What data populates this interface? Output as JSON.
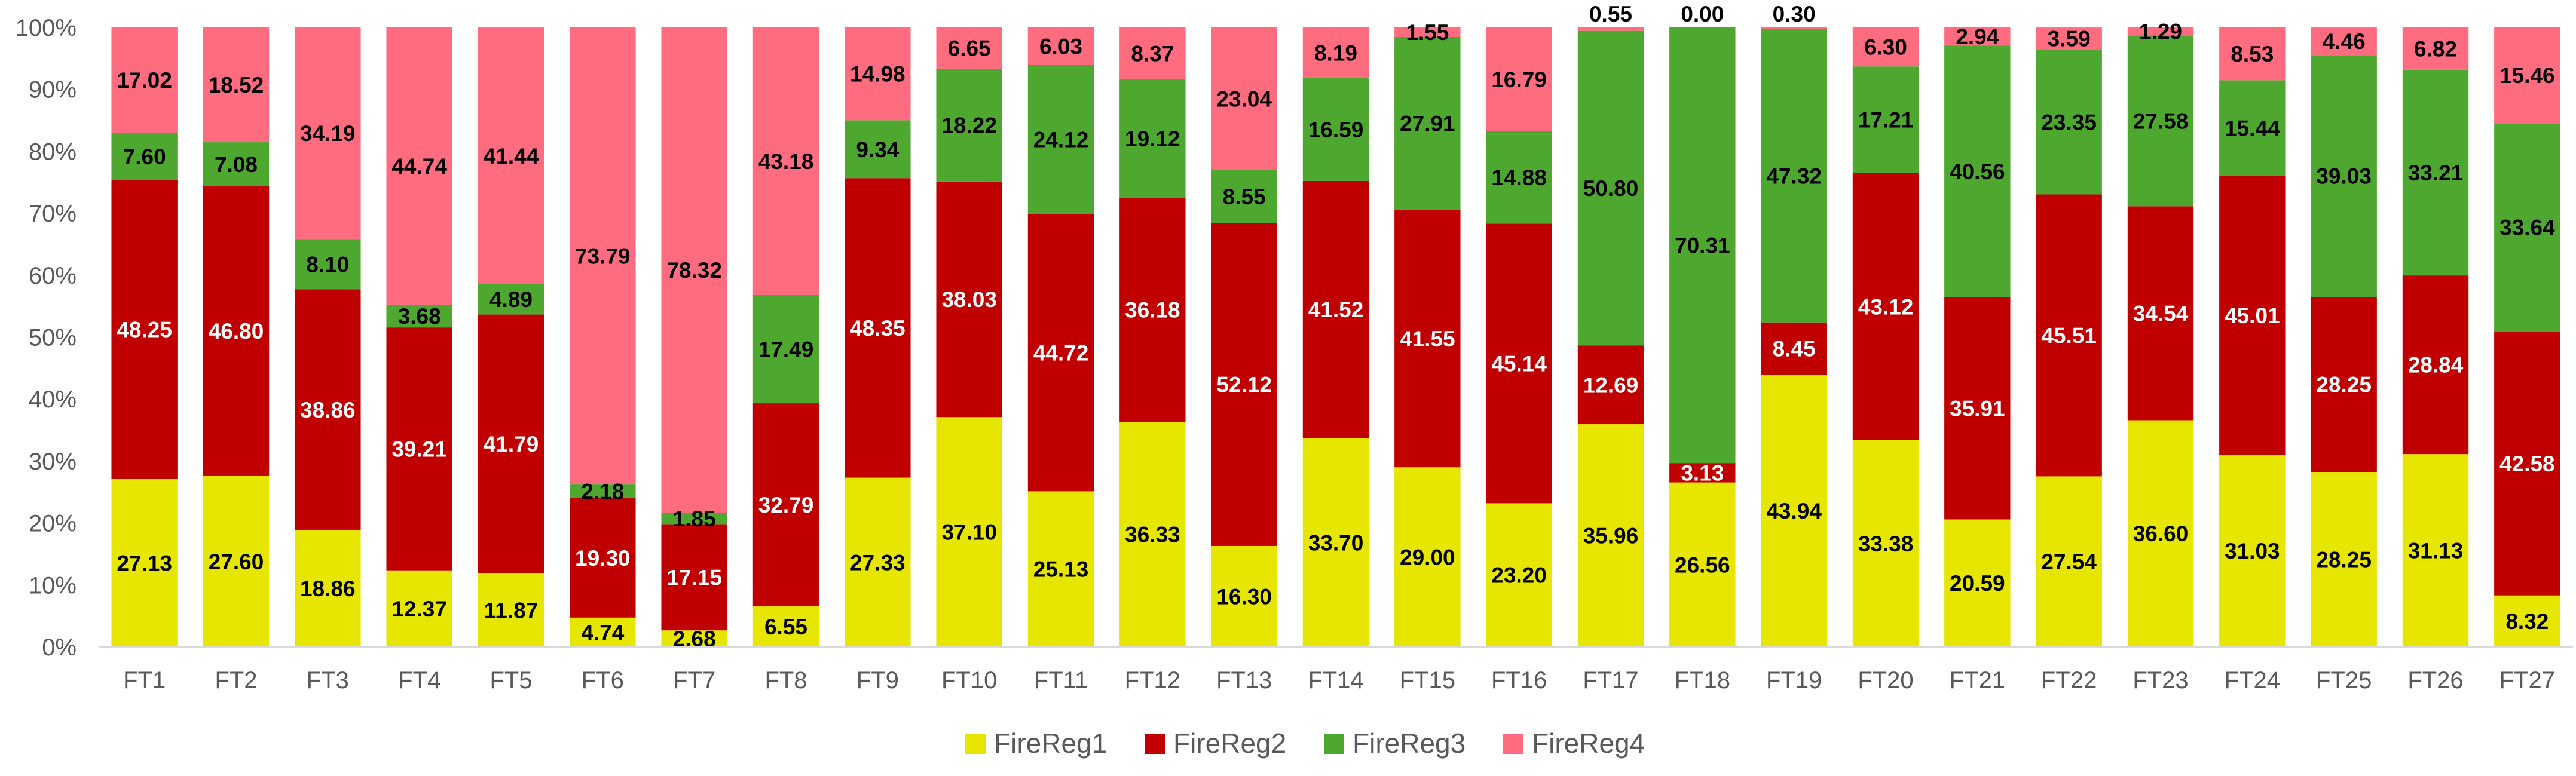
{
  "chart_data": {
    "type": "bar",
    "stacked": true,
    "title": "",
    "xlabel": "",
    "ylabel": "",
    "ylim": [
      0,
      100
    ],
    "y_tick_values": [
      0,
      10,
      20,
      30,
      40,
      50,
      60,
      70,
      80,
      90,
      100
    ],
    "y_tick_labels": [
      "0%",
      "10%",
      "20%",
      "30%",
      "40%",
      "50%",
      "60%",
      "70%",
      "80%",
      "90%",
      "100%"
    ],
    "grid": false,
    "legend_position": "bottom",
    "categories": [
      "FT1",
      "FT2",
      "FT3",
      "FT4",
      "FT5",
      "FT6",
      "FT7",
      "FT8",
      "FT9",
      "FT10",
      "FT11",
      "FT12",
      "FT13",
      "FT14",
      "FT15",
      "FT16",
      "FT17",
      "FT18",
      "FT19",
      "FT20",
      "FT21",
      "FT22",
      "FT23",
      "FT24",
      "FT25",
      "FT26",
      "FT27"
    ],
    "series": [
      {
        "name": "FireReg1",
        "color": "#E6E600",
        "label_color": "#000000",
        "values": [
          27.13,
          27.6,
          18.86,
          12.37,
          11.87,
          4.74,
          2.68,
          6.55,
          27.33,
          37.1,
          25.13,
          36.33,
          16.3,
          33.7,
          29.0,
          23.2,
          35.96,
          26.56,
          43.94,
          33.38,
          20.59,
          27.54,
          36.6,
          31.03,
          28.25,
          31.13,
          8.32
        ],
        "labels": [
          "27.13",
          "27.60",
          "18.86",
          "12.37",
          "11.87",
          "4.74",
          "2.68",
          "6.55",
          "27.33",
          "37.10",
          "25.13",
          "36.33",
          "16.30",
          "33.70",
          "29.00",
          "23.20",
          "35.96",
          "26.56",
          "43.94",
          "33.38",
          "20.59",
          "27.54",
          "36.60",
          "31.03",
          "28.25",
          "31.13",
          "8.32"
        ]
      },
      {
        "name": "FireReg2",
        "color": "#C00000",
        "label_color": "#ffffff",
        "values": [
          48.25,
          46.8,
          38.86,
          39.21,
          41.79,
          19.3,
          17.15,
          32.79,
          48.35,
          38.03,
          44.72,
          36.18,
          52.12,
          41.52,
          41.55,
          45.14,
          12.69,
          3.13,
          8.45,
          43.12,
          35.91,
          45.51,
          34.54,
          45.01,
          28.25,
          28.84,
          42.58
        ],
        "labels": [
          "48.25",
          "46.80",
          "38.86",
          "39.21",
          "41.79",
          "19.30",
          "17.15",
          "32.79",
          "48.35",
          "38.03",
          "44.72",
          "36.18",
          "52.12",
          "41.52",
          "41.55",
          "45.14",
          "12.69",
          "3.13",
          "8.45",
          "43.12",
          "35.91",
          "45.51",
          "34.54",
          "45.01",
          "28.25",
          "28.84",
          "42.58"
        ]
      },
      {
        "name": "FireReg3",
        "color": "#4EA72E",
        "label_color": "#000000",
        "values": [
          7.6,
          7.08,
          8.1,
          3.68,
          4.89,
          2.18,
          1.85,
          17.49,
          9.34,
          18.22,
          24.12,
          19.12,
          8.55,
          16.59,
          27.91,
          14.88,
          50.8,
          70.31,
          47.32,
          17.21,
          40.56,
          23.35,
          27.58,
          15.44,
          39.03,
          33.21,
          33.64
        ],
        "labels": [
          "7.60",
          "7.08",
          "8.10",
          "3.68",
          "4.89",
          "2.18",
          "1.85",
          "17.49",
          "9.34",
          "18.22",
          "24.12",
          "19.12",
          "8.55",
          "16.59",
          "27.91",
          "14.88",
          "50.80",
          "70.31",
          "47.32",
          "17.21",
          "40.56",
          "23.35",
          "27.58",
          "15.44",
          "39.03",
          "33.21",
          "33.64"
        ]
      },
      {
        "name": "FireReg4",
        "color": "#FF6B7F",
        "label_color": "#000000",
        "values": [
          17.02,
          18.52,
          34.19,
          44.74,
          41.44,
          73.79,
          78.32,
          43.18,
          14.98,
          6.65,
          6.03,
          8.37,
          23.04,
          8.19,
          1.55,
          16.79,
          0.55,
          0.0,
          0.3,
          6.3,
          2.94,
          3.59,
          1.29,
          8.53,
          4.46,
          6.82,
          15.46
        ],
        "labels": [
          "17.02",
          "18.52",
          "34.19",
          "44.74",
          "41.44",
          "73.79",
          "78.32",
          "43.18",
          "14.98",
          "6.65",
          "6.03",
          "8.37",
          "23.04",
          "8.19",
          "1.55",
          "16.79",
          "0.55",
          "0.00",
          "0.30",
          "6.30",
          "2.94",
          "3.59",
          "1.29",
          "8.53",
          "4.46",
          "6.82",
          "15.46"
        ]
      }
    ]
  }
}
